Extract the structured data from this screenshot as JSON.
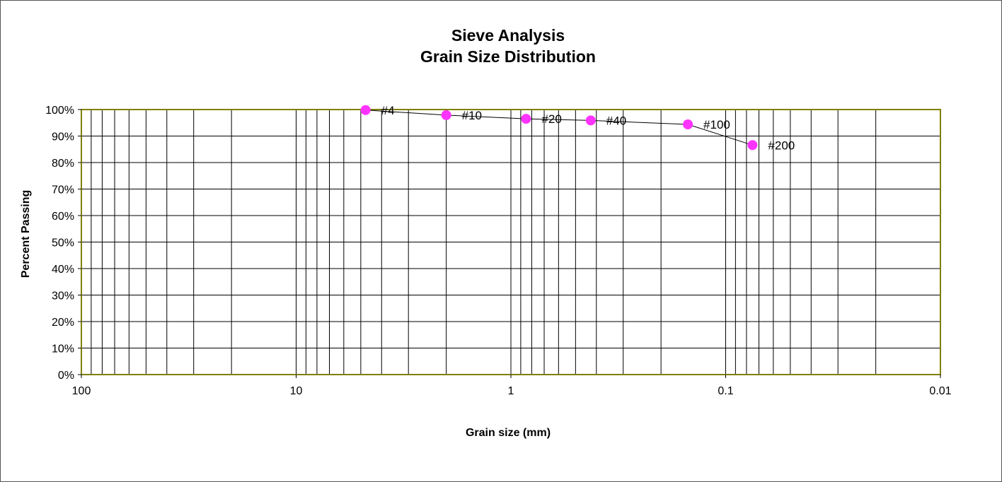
{
  "chart_data": {
    "type": "scatter",
    "title": "Sieve Analysis",
    "subtitle": "Grain Size Distribution",
    "xlabel": "Grain size (mm)",
    "ylabel": "Percent Passing",
    "x_scale": "log",
    "x_reversed": true,
    "xlim": [
      100,
      0.01
    ],
    "ylim": [
      0,
      100
    ],
    "x_ticks": [
      "100",
      "10",
      "1",
      "0.1",
      "0.01"
    ],
    "y_ticks": [
      "0%",
      "10%",
      "20%",
      "30%",
      "40%",
      "50%",
      "60%",
      "70%",
      "80%",
      "90%",
      "100%"
    ],
    "grid": true,
    "legend": "none",
    "series": [
      {
        "points": [
          {
            "label": "#4",
            "x": 4.75,
            "y": 99.8
          },
          {
            "label": "#10",
            "x": 2.0,
            "y": 97.9
          },
          {
            "label": "#20",
            "x": 0.85,
            "y": 96.5
          },
          {
            "label": "#40",
            "x": 0.425,
            "y": 95.9
          },
          {
            "label": "#100",
            "x": 0.15,
            "y": 94.4
          },
          {
            "label": "#200",
            "x": 0.075,
            "y": 86.6
          }
        ]
      }
    ],
    "colors": {
      "marker": "#ff33ff",
      "line": "#000000",
      "grid": "#000000",
      "plot_border": "#808000"
    }
  }
}
